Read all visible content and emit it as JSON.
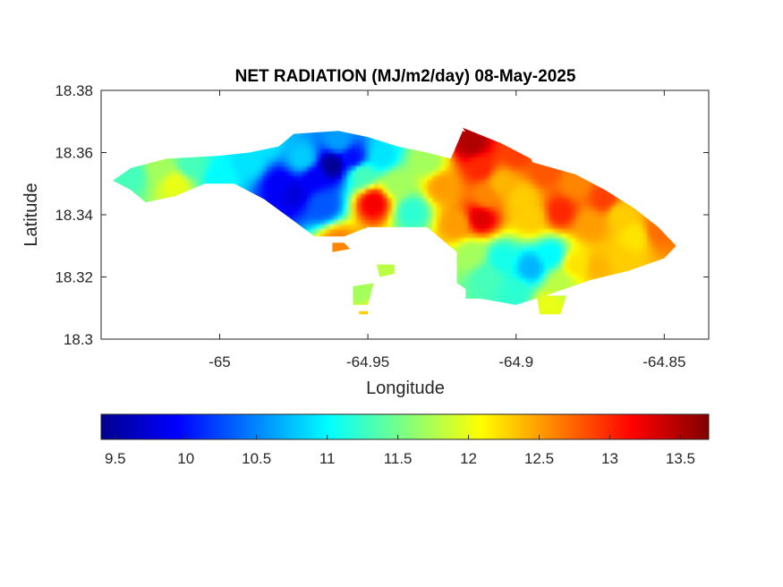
{
  "chart_data": {
    "type": "heatmap",
    "title": "NET RADIATION (MJ/m2/day) 08-May-2025",
    "xlabel": "Longitude",
    "ylabel": "Latitude",
    "xlim": [
      -65.04,
      -64.835
    ],
    "ylim": [
      18.3,
      18.38
    ],
    "x_ticks": [
      "-65",
      "-64.95",
      "-64.9",
      "-64.85"
    ],
    "x_tick_values": [
      -65,
      -64.95,
      -64.9,
      -64.85
    ],
    "y_ticks": [
      "18.38",
      "18.36",
      "18.34",
      "18.32",
      "18.3"
    ],
    "y_tick_values": [
      18.38,
      18.36,
      18.34,
      18.32,
      18.3
    ],
    "colormap": "jet",
    "colorbar": {
      "range": [
        9.4,
        13.7
      ],
      "ticks": [
        "9.5",
        "10",
        "10.5",
        "11",
        "11.5",
        "12",
        "12.5",
        "13",
        "13.5"
      ],
      "tick_values": [
        9.5,
        10,
        10.5,
        11,
        11.5,
        12,
        12.5,
        13,
        13.5
      ],
      "placement": "bottom"
    },
    "outline": [
      [
        -65.036,
        18.351
      ],
      [
        -65.03,
        18.355
      ],
      [
        -65.018,
        18.358
      ],
      [
        -65.0,
        18.359
      ],
      [
        -64.99,
        18.36
      ],
      [
        -64.98,
        18.362
      ],
      [
        -64.975,
        18.366
      ],
      [
        -64.96,
        18.367
      ],
      [
        -64.95,
        18.365
      ],
      [
        -64.94,
        18.362
      ],
      [
        -64.93,
        18.36
      ],
      [
        -64.922,
        18.358
      ],
      [
        -64.918,
        18.367
      ],
      [
        -64.905,
        18.362
      ],
      [
        -64.895,
        18.357
      ],
      [
        -64.88,
        18.353
      ],
      [
        -64.87,
        18.348
      ],
      [
        -64.86,
        18.342
      ],
      [
        -64.852,
        18.336
      ],
      [
        -64.846,
        18.33
      ],
      [
        -64.85,
        18.326
      ],
      [
        -64.862,
        18.322
      ],
      [
        -64.875,
        18.319
      ],
      [
        -64.89,
        18.314
      ],
      [
        -64.9,
        18.311
      ],
      [
        -64.912,
        18.313
      ],
      [
        -64.92,
        18.318
      ],
      [
        -64.92,
        18.328
      ],
      [
        -64.93,
        18.336
      ],
      [
        -64.95,
        18.336
      ],
      [
        -64.958,
        18.333
      ],
      [
        -64.968,
        18.333
      ],
      [
        -64.975,
        18.338
      ],
      [
        -64.985,
        18.345
      ],
      [
        -64.995,
        18.35
      ],
      [
        -65.005,
        18.35
      ],
      [
        -65.015,
        18.346
      ],
      [
        -65.025,
        18.344
      ],
      [
        -65.03,
        18.348
      ]
    ],
    "islets": [
      [
        [
          -64.918,
          18.368
        ],
        [
          -64.905,
          18.363
        ],
        [
          -64.895,
          18.358
        ],
        [
          -64.892,
          18.352
        ],
        [
          -64.91,
          18.356
        ]
      ],
      [
        [
          -64.962,
          18.331
        ],
        [
          -64.958,
          18.331
        ],
        [
          -64.956,
          18.329
        ],
        [
          -64.962,
          18.328
        ]
      ],
      [
        [
          -64.955,
          18.317
        ],
        [
          -64.948,
          18.318
        ],
        [
          -64.95,
          18.311
        ],
        [
          -64.955,
          18.311
        ]
      ],
      [
        [
          -64.947,
          18.324
        ],
        [
          -64.941,
          18.324
        ],
        [
          -64.941,
          18.321
        ],
        [
          -64.946,
          18.32
        ]
      ],
      [
        [
          -64.917,
          18.319
        ],
        [
          -64.912,
          18.319
        ],
        [
          -64.912,
          18.313
        ],
        [
          -64.917,
          18.313
        ]
      ],
      [
        [
          -64.893,
          18.314
        ],
        [
          -64.883,
          18.314
        ],
        [
          -64.885,
          18.308
        ],
        [
          -64.892,
          18.308
        ]
      ],
      [
        [
          -64.953,
          18.309
        ],
        [
          -64.95,
          18.309
        ],
        [
          -64.95,
          18.308
        ],
        [
          -64.953,
          18.308
        ]
      ]
    ],
    "sample_points": [
      [
        -65.03,
        18.353,
        11.3
      ],
      [
        -65.02,
        18.355,
        11.7
      ],
      [
        -65.015,
        18.35,
        12.0
      ],
      [
        -65.01,
        18.356,
        11.3
      ],
      [
        -65.0,
        18.352,
        11.0
      ],
      [
        -64.99,
        18.357,
        10.9
      ],
      [
        -64.985,
        18.363,
        10.9
      ],
      [
        -64.98,
        18.35,
        9.9
      ],
      [
        -64.975,
        18.347,
        9.8
      ],
      [
        -64.972,
        18.358,
        10.8
      ],
      [
        -64.968,
        18.352,
        9.9
      ],
      [
        -64.965,
        18.343,
        10.3
      ],
      [
        -64.962,
        18.356,
        9.5
      ],
      [
        -64.96,
        18.364,
        10.6
      ],
      [
        -64.955,
        18.358,
        10.0
      ],
      [
        -64.952,
        18.353,
        11.3
      ],
      [
        -64.948,
        18.344,
        13.2
      ],
      [
        -64.945,
        18.359,
        10.9
      ],
      [
        -64.94,
        18.35,
        11.7
      ],
      [
        -64.935,
        18.341,
        11.2
      ],
      [
        -64.93,
        18.357,
        11.7
      ],
      [
        -64.925,
        18.349,
        12.5
      ],
      [
        -64.92,
        18.337,
        12.5
      ],
      [
        -64.915,
        18.363,
        13.5
      ],
      [
        -64.912,
        18.355,
        13.0
      ],
      [
        -64.91,
        18.346,
        12.6
      ],
      [
        -64.912,
        18.339,
        13.3
      ],
      [
        -64.905,
        18.35,
        12.4
      ],
      [
        -64.9,
        18.36,
        12.9
      ],
      [
        -64.898,
        18.345,
        12.3
      ],
      [
        -64.895,
        18.339,
        12.3
      ],
      [
        -64.89,
        18.354,
        12.8
      ],
      [
        -64.885,
        18.341,
        13.0
      ],
      [
        -64.88,
        18.35,
        12.6
      ],
      [
        -64.875,
        18.337,
        12.5
      ],
      [
        -64.87,
        18.345,
        12.9
      ],
      [
        -64.865,
        18.34,
        12.3
      ],
      [
        -64.86,
        18.333,
        12.2
      ],
      [
        -64.852,
        18.335,
        12.7
      ],
      [
        -64.915,
        18.327,
        11.7
      ],
      [
        -64.91,
        18.32,
        11.3
      ],
      [
        -64.905,
        18.326,
        11.1
      ],
      [
        -64.9,
        18.315,
        11.2
      ],
      [
        -64.895,
        18.323,
        10.7
      ],
      [
        -64.888,
        18.327,
        11.0
      ],
      [
        -64.885,
        18.318,
        11.8
      ],
      [
        -64.88,
        18.324,
        12.2
      ],
      [
        -64.872,
        18.323,
        12.4
      ],
      [
        -64.865,
        18.325,
        12.3
      ],
      [
        -64.889,
        18.311,
        12.0
      ],
      [
        -64.96,
        18.331,
        12.6
      ],
      [
        -64.952,
        18.314,
        11.7
      ],
      [
        -64.944,
        18.322,
        11.8
      ],
      [
        -64.95,
        18.308,
        12.3
      ]
    ]
  }
}
